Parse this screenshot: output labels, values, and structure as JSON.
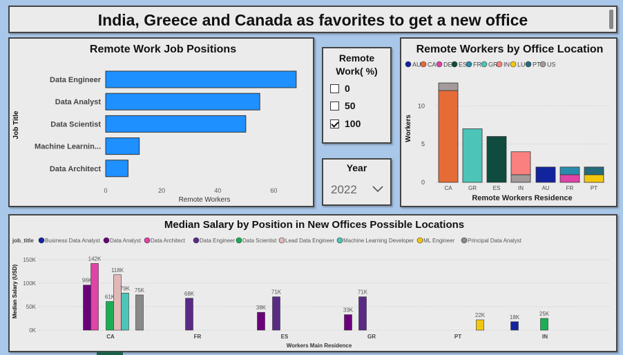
{
  "header": {
    "title": "India, Greece and Canada as favorites to get a new office"
  },
  "slicer_remote": {
    "title": "Remote Work( %)",
    "options": [
      {
        "label": "0",
        "checked": false
      },
      {
        "label": "50",
        "checked": false
      },
      {
        "label": "100",
        "checked": true
      }
    ]
  },
  "slicer_year": {
    "title": "Year",
    "value": "2022"
  },
  "chart_data": [
    {
      "type": "bar",
      "orientation": "horizontal",
      "title": "Remote Work Job Positions",
      "xlabel": "Remote Workers",
      "ylabel": "Job Title",
      "categories": [
        "Data Engineer",
        "Data Analyst",
        "Data Scientist",
        "Machine Learnin...",
        "Data Architect"
      ],
      "values": [
        68,
        55,
        50,
        12,
        8
      ],
      "xticks": [
        0,
        20,
        40,
        60
      ],
      "xlim": [
        0,
        70
      ],
      "color": "#1e90ff"
    },
    {
      "type": "bar",
      "stacked": true,
      "title": "Remote Workers by Office Location",
      "xlabel": "Remote Workers Residence",
      "ylabel": "Workers",
      "legend": [
        "AU",
        "CA",
        "DE",
        "ES",
        "FR",
        "GR",
        "IN",
        "LU",
        "PT",
        "US"
      ],
      "legend_colors": [
        "#12239e",
        "#e66c37",
        "#e044a7",
        "#0f4b3f",
        "#2a8cad",
        "#4dc4b8",
        "#fa8080",
        "#f2c80f",
        "#256b7c",
        "#a39a9a"
      ],
      "categories": [
        "CA",
        "GR",
        "ES",
        "IN",
        "AU",
        "FR",
        "PT"
      ],
      "series": [
        {
          "name": "CA",
          "values": [
            12,
            0,
            0,
            0,
            0,
            0,
            0
          ]
        },
        {
          "name": "US",
          "values": [
            1,
            0,
            0,
            1,
            0,
            0,
            0
          ]
        },
        {
          "name": "GR",
          "values": [
            0,
            7,
            0,
            0,
            0,
            0,
            0
          ]
        },
        {
          "name": "ES",
          "values": [
            0,
            0,
            6,
            0,
            0,
            0,
            0
          ]
        },
        {
          "name": "IN",
          "values": [
            0,
            0,
            0,
            3,
            0,
            0,
            0
          ]
        },
        {
          "name": "AU",
          "values": [
            0,
            0,
            0,
            0,
            2,
            0,
            0
          ]
        },
        {
          "name": "DE",
          "values": [
            0,
            0,
            0,
            0,
            0,
            1,
            0
          ]
        },
        {
          "name": "LU",
          "values": [
            0,
            0,
            0,
            0,
            0,
            0,
            1
          ]
        },
        {
          "name": "FR",
          "values": [
            0,
            0,
            0,
            0,
            0,
            1,
            0
          ]
        },
        {
          "name": "PT",
          "values": [
            0,
            0,
            0,
            0,
            0,
            0,
            1
          ]
        }
      ],
      "yticks": [
        0,
        5,
        10
      ],
      "ylim": [
        0,
        14
      ]
    },
    {
      "type": "bar",
      "grouped": true,
      "title": "Median Salary by Position in New Offices Possible Locations",
      "xlabel": "Workers Main Residence",
      "ylabel": "Median Salary (USD)",
      "legend_title": "job_title",
      "legend": [
        "Business Data Analyst",
        "Data Analyst",
        "Data Architect",
        "Data Engineer",
        "Data Scientist",
        "Lead Data Engineer",
        "Machine Learning Developer",
        "ML Engineer",
        "Principal Data Analyst"
      ],
      "legend_colors": [
        "#12239e",
        "#6b007b",
        "#e044a7",
        "#5b2a86",
        "#1aaf54",
        "#e0b8b8",
        "#4dc4b8",
        "#f2c80f",
        "#8a8a8a"
      ],
      "categories": [
        "CA",
        "FR",
        "ES",
        "GR",
        "PT",
        "IN"
      ],
      "yticks": [
        "0K",
        "50K",
        "100K",
        "150K"
      ],
      "ytick_values": [
        0,
        50000,
        100000,
        150000
      ],
      "ylim": [
        0,
        160000
      ],
      "bars": [
        {
          "category": "CA",
          "job": "Data Analyst",
          "value": 96000,
          "label": "96K"
        },
        {
          "category": "CA",
          "job": "Data Architect",
          "value": 142000,
          "label": "142K"
        },
        {
          "category": "CA",
          "job": "Data Scientist",
          "value": 61000,
          "label": "61K"
        },
        {
          "category": "CA",
          "job": "Lead Data Engineer",
          "value": 118000,
          "label": "118K"
        },
        {
          "category": "CA",
          "job": "Machine Learning Developer",
          "value": 79000,
          "label": "79K"
        },
        {
          "category": "CA",
          "job": "Principal Data Analyst",
          "value": 75000,
          "label": "75K"
        },
        {
          "category": "FR",
          "job": "Data Engineer",
          "value": 68000,
          "label": "68K"
        },
        {
          "category": "ES",
          "job": "Data Analyst",
          "value": 38000,
          "label": "38K"
        },
        {
          "category": "ES",
          "job": "Data Engineer",
          "value": 71000,
          "label": "71K"
        },
        {
          "category": "GR",
          "job": "Data Analyst",
          "value": 33000,
          "label": "33K"
        },
        {
          "category": "GR",
          "job": "Data Engineer",
          "value": 71000,
          "label": "71K"
        },
        {
          "category": "IN",
          "job": "ML Engineer",
          "value": 22000,
          "label": "22K"
        },
        {
          "category": "IN",
          "job": "Business Data Analyst",
          "value": 18000,
          "label": "18K"
        },
        {
          "category": "IN",
          "job": "Data Scientist",
          "value": 25000,
          "label": "25K"
        }
      ]
    }
  ]
}
